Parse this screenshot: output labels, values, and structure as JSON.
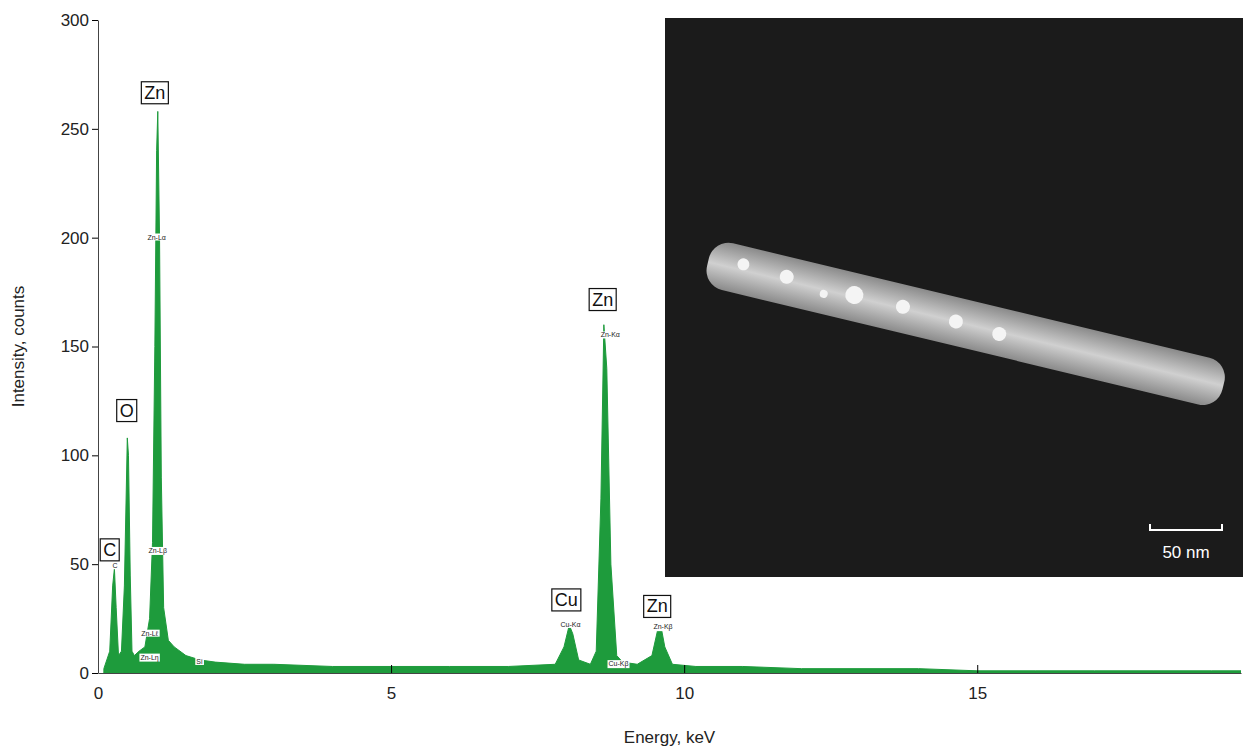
{
  "chart_data": {
    "type": "area",
    "x_label": "Energy, keV",
    "y_label": "Intensity, counts",
    "x": [
      0.1,
      0.2,
      0.25,
      0.28,
      0.31,
      0.35,
      0.4,
      0.45,
      0.5,
      0.52,
      0.55,
      0.58,
      0.62,
      0.7,
      0.8,
      0.88,
      0.93,
      0.97,
      1.0,
      1.02,
      1.05,
      1.08,
      1.12,
      1.2,
      1.3,
      1.5,
      1.74,
      2.0,
      2.5,
      3,
      4,
      5,
      6,
      7,
      7.8,
      7.95,
      8.04,
      8.1,
      8.2,
      8.4,
      8.5,
      8.58,
      8.63,
      8.68,
      8.75,
      8.85,
      8.95,
      9.2,
      9.45,
      9.55,
      9.6,
      9.67,
      9.8,
      10.2,
      11,
      12,
      13,
      14,
      15,
      16,
      17,
      18,
      19,
      19.5
    ],
    "values": [
      2,
      10,
      40,
      48,
      30,
      8,
      10,
      40,
      108,
      100,
      45,
      10,
      8,
      10,
      12,
      25,
      60,
      150,
      240,
      258,
      200,
      90,
      30,
      15,
      12,
      8,
      6,
      5,
      4,
      4,
      3,
      3,
      3,
      3,
      4,
      12,
      22,
      18,
      6,
      4,
      10,
      80,
      160,
      140,
      50,
      8,
      5,
      4,
      8,
      20,
      22,
      12,
      4,
      3,
      3,
      2,
      2,
      2,
      1,
      1,
      1,
      1,
      1,
      1
    ],
    "color": "#1e9b3c",
    "xlim": [
      0,
      19.5
    ],
    "xticks": [
      0,
      5,
      10,
      15
    ],
    "ylim": [
      0,
      300
    ],
    "yticks": [
      0,
      50,
      100,
      150,
      200,
      250,
      300
    ],
    "annotations": [
      {
        "text": "Zn",
        "x": 0.97,
        "y": 266
      },
      {
        "text": "O",
        "x": 0.49,
        "y": 120
      },
      {
        "text": "C",
        "x": 0.2,
        "y": 56
      },
      {
        "text": "Zn",
        "x": 8.61,
        "y": 171
      },
      {
        "text": "Cu",
        "x": 7.99,
        "y": 33
      },
      {
        "text": "Zn",
        "x": 9.54,
        "y": 30
      }
    ],
    "peak_labels": [
      {
        "text": "Zn-Lα",
        "x": 1.0,
        "y": 200
      },
      {
        "text": "Zn-Lβ",
        "x": 1.02,
        "y": 56
      },
      {
        "text": "Zn-Kα",
        "x": 8.74,
        "y": 155
      },
      {
        "text": "Cu-Kα",
        "x": 8.06,
        "y": 22
      },
      {
        "text": "Zn-Kβ",
        "x": 9.64,
        "y": 21
      },
      {
        "text": "Cu-Kβ",
        "x": 8.88,
        "y": 4
      },
      {
        "text": "Zn-Lℓ",
        "x": 0.88,
        "y": 18
      },
      {
        "text": "Zn-Lη",
        "x": 0.88,
        "y": 7
      },
      {
        "text": "Si",
        "x": 1.73,
        "y": 5
      },
      {
        "text": "C",
        "x": 0.29,
        "y": 49
      }
    ]
  },
  "inset": {
    "scale_bar": "50 nm"
  }
}
